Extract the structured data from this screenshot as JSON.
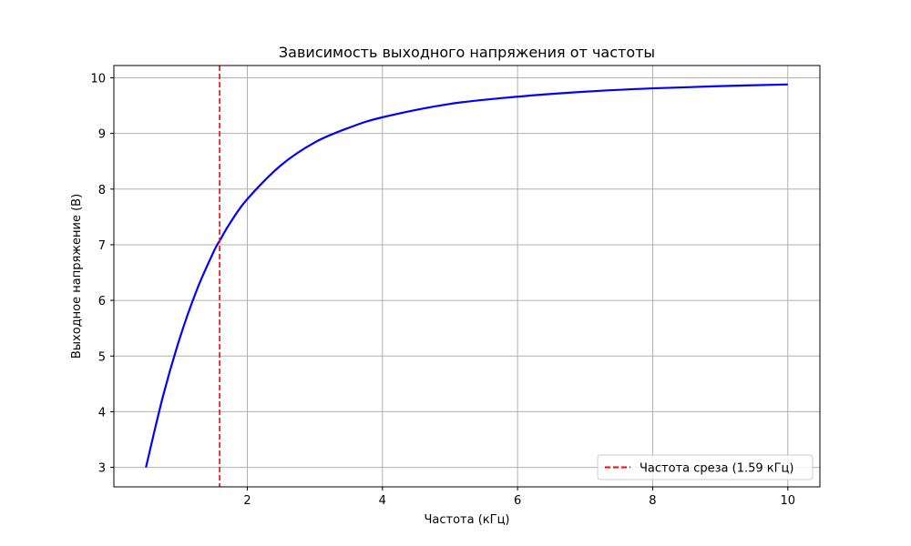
{
  "chart_data": {
    "type": "line",
    "title": "Зависимость выходного напряжения от частоты",
    "xlabel": "Частота (кГц)",
    "ylabel": "Выходное напряжение (В)",
    "xlim": [
      0.025,
      10.475
    ],
    "ylim": [
      2.65,
      10.22
    ],
    "xticks": [
      2,
      4,
      6,
      8,
      10
    ],
    "yticks": [
      3,
      4,
      5,
      6,
      7,
      8,
      9,
      10
    ],
    "grid": true,
    "legend_position": "lower-right",
    "series": [
      {
        "color": "#0000ff",
        "x": [
          0.5,
          0.75,
          1.0,
          1.25,
          1.5,
          1.59,
          1.75,
          2.0,
          2.5,
          3.0,
          3.5,
          4.0,
          5.0,
          6.0,
          7.0,
          8.0,
          9.0,
          10.0
        ],
        "values": [
          3.0,
          4.27,
          5.32,
          6.18,
          6.87,
          7.07,
          7.4,
          7.82,
          8.43,
          8.84,
          9.1,
          9.29,
          9.53,
          9.66,
          9.75,
          9.81,
          9.85,
          9.88
        ]
      }
    ],
    "annotations": [
      {
        "type": "vline",
        "x": 1.59,
        "color": "#ff0000",
        "style": "dashed",
        "label": "Частота среза (1.59 кГц)"
      }
    ]
  }
}
